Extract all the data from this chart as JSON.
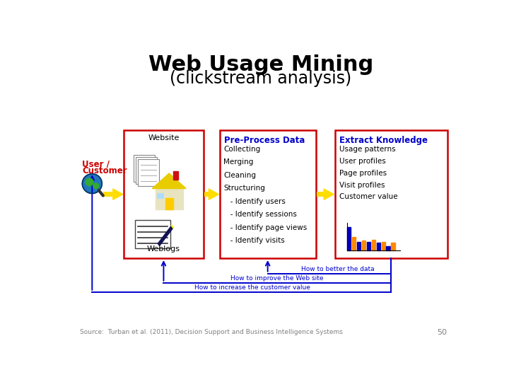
{
  "title": "Web Usage Mining",
  "subtitle": "(clickstream analysis)",
  "title_fontsize": 22,
  "subtitle_fontsize": 17,
  "source_text": "Source:  Turban et al. (2011), Decision Support and Business Intelligence Systems",
  "page_number": "50",
  "title_color": "#000000",
  "subtitle_color": "#000000",
  "source_color": "#808080",
  "bg_color": "#ffffff",
  "box3_title": "Pre-Process Data",
  "box3_items": [
    "Collecting",
    "Merging",
    "Cleaning",
    "Structuring",
    "   - Identify users",
    "   - Identify sessions",
    "   - Identify page views",
    "   - Identify visits"
  ],
  "box4_title": "Extract Knowledge",
  "box4_items": [
    "Usage patterns",
    "User profiles",
    "Page profiles",
    "Visit profiles",
    "Customer value"
  ],
  "arrow_color": "#ffdd00",
  "feedback_color": "#0000cc",
  "feedback_texts": [
    "How to better the data",
    "How to improve the Web site",
    "How to increase the customer value"
  ],
  "website_label": "Website",
  "weblogs_label": "Weblogs",
  "user_label1": "User /",
  "user_label2": "Customer",
  "box_edge_color": "#cc0000",
  "title_bold_color": "#0000cc",
  "text_color": "#000000"
}
